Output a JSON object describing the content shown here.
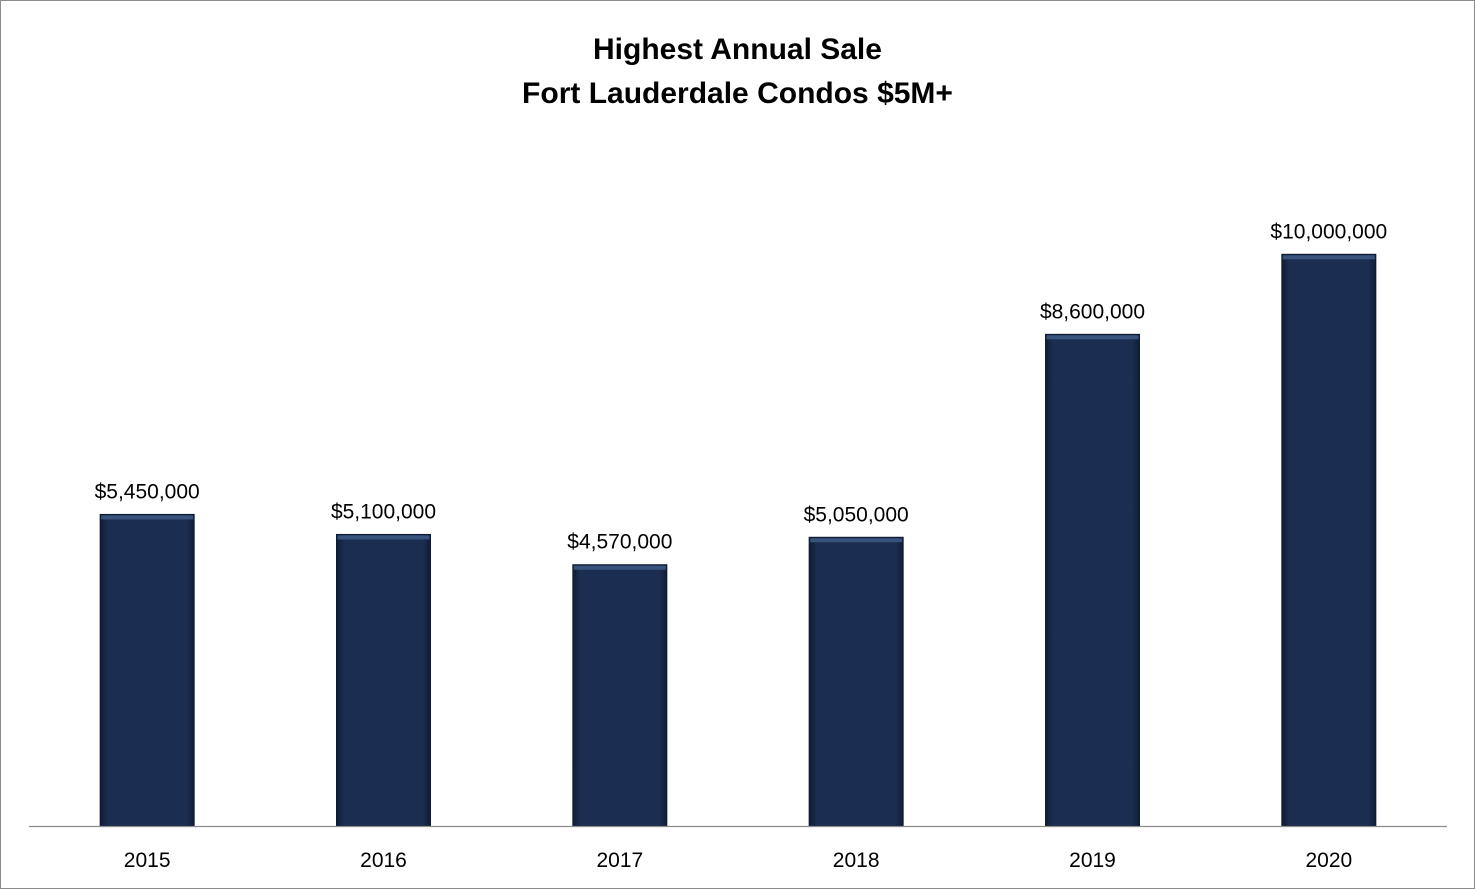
{
  "chart_data": {
    "type": "bar",
    "title": "Highest Annual Sale",
    "subtitle": "Fort Lauderdale Condos $5M+",
    "xlabel": "",
    "ylabel": "",
    "categories": [
      "2015",
      "2016",
      "2017",
      "2018",
      "2019",
      "2020"
    ],
    "values": [
      5450000,
      5100000,
      4570000,
      5050000,
      8600000,
      10000000
    ],
    "value_labels": [
      "$5,450,000",
      "$5,100,000",
      "$4,570,000",
      "$5,050,000",
      "$8,600,000",
      "$10,000,000"
    ],
    "ylim": [
      0,
      11000000
    ],
    "grid": false,
    "legend": "none",
    "bar_color": "#17294a"
  }
}
